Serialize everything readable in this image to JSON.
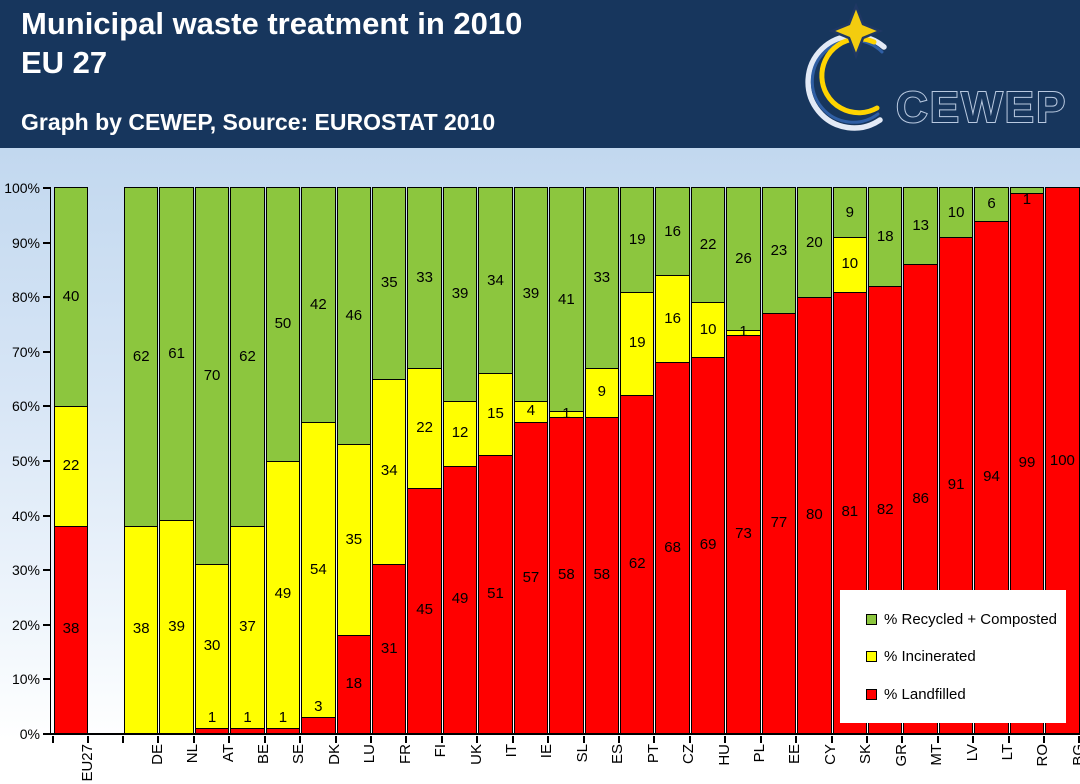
{
  "header": {
    "title_line1": "Municipal waste treatment in 2010",
    "title_line2": "EU 27",
    "subtitle": "Graph by CEWEP, Source: EUROSTAT 2010",
    "logo_text": "CEWEP"
  },
  "chart_data": {
    "type": "bar",
    "stacked": true,
    "title": "Municipal waste treatment in 2010 EU 27",
    "source_note": "Graph by CEWEP, Source: EUROSTAT 2010",
    "ylim": [
      0,
      100
    ],
    "grid": false,
    "y_ticks": [
      "0%",
      "10%",
      "20%",
      "30%",
      "40%",
      "50%",
      "60%",
      "70%",
      "80%",
      "90%",
      "100%"
    ],
    "categories": [
      "EU27",
      "DE",
      "NL",
      "AT",
      "BE",
      "SE",
      "DK",
      "LU",
      "FR",
      "FI",
      "UK",
      "IT",
      "IE",
      "SL",
      "ES",
      "PT",
      "CZ",
      "HU",
      "PL",
      "EE",
      "CY",
      "SK",
      "GR",
      "MT",
      "LV",
      "LT",
      "RO",
      "BG"
    ],
    "series": [
      {
        "name": "% Landfilled",
        "color": "#FF0000",
        "values": [
          38,
          0,
          0,
          1,
          1,
          1,
          3,
          18,
          31,
          45,
          49,
          51,
          57,
          58,
          58,
          62,
          68,
          69,
          73,
          77,
          80,
          81,
          82,
          86,
          91,
          94,
          99,
          100
        ]
      },
      {
        "name": "% Incinerated",
        "color": "#FFFF00",
        "values": [
          22,
          38,
          39,
          30,
          37,
          49,
          54,
          35,
          34,
          22,
          12,
          15,
          4,
          1,
          9,
          19,
          16,
          10,
          1,
          0,
          0,
          10,
          0,
          0,
          0,
          0,
          0,
          0
        ]
      },
      {
        "name": "% Recycled + Composted",
        "color": "#8CC63E",
        "values": [
          40,
          62,
          61,
          70,
          62,
          50,
          42,
          46,
          35,
          33,
          39,
          34,
          39,
          41,
          33,
          19,
          16,
          22,
          26,
          23,
          20,
          9,
          18,
          13,
          10,
          6,
          1,
          0
        ]
      }
    ],
    "legend_items": [
      {
        "label": "% Recycled + Composted",
        "color": "#8CC63E"
      },
      {
        "label": "% Incinerated",
        "color": "#FFFF00"
      },
      {
        "label": "% Landfilled",
        "color": "#FF0000"
      }
    ],
    "legend_position": "bottom-right"
  },
  "colors": {
    "header_bg": "#17365D",
    "title_text": "#FFFFFF",
    "chart_bg_top": "#C2D8EF",
    "chart_bg_bottom": "#FFFFFF",
    "bar_border": "#000000",
    "axis_text": "#000000",
    "logo_star": "#F3CC0F",
    "logo_swoosh_light": "#E3EAF6",
    "logo_swoosh_blue": "#2F5FA5",
    "logo_swoosh_yellow": "#FFD400"
  }
}
